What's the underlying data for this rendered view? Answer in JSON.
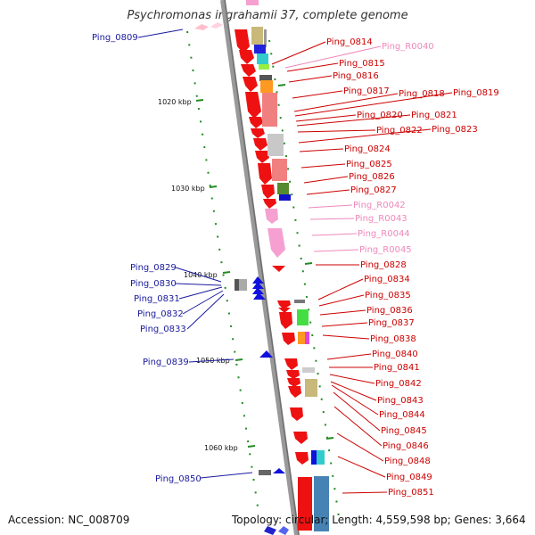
{
  "title": "Psychromonas ingrahamii 37, complete genome",
  "footer": {
    "accession": "Accession: NC_008709",
    "summary": "Topology: circular; Length: 4,559,598 bp; Genes: 3,664"
  },
  "colors": {
    "left_label": "#1a1aa0",
    "right_label": "#cc0000",
    "rna_label": "#ee88bb",
    "backbone": "#888888",
    "tick": "#228b22",
    "gene_red": "#ee1111",
    "gene_blue": "#1111dd",
    "gene_pink": "#f5a0d0"
  },
  "scale_labels": [
    "1020 kbp",
    "1030 kbp",
    "1040 kbp",
    "1050 kbp",
    "1060 kbp"
  ],
  "left_labels": [
    "Ping_0809",
    "Ping_0829",
    "Ping_0830",
    "Ping_0831",
    "Ping_0832",
    "Ping_0833",
    "Ping_0839",
    "Ping_0850"
  ],
  "right_labels": [
    {
      "text": "Ping_0814",
      "kind": "gene"
    },
    {
      "text": "Ping_R0040",
      "kind": "rna"
    },
    {
      "text": "Ping_0815",
      "kind": "gene"
    },
    {
      "text": "Ping_0816",
      "kind": "gene"
    },
    {
      "text": "Ping_0817",
      "kind": "gene"
    },
    {
      "text": "Ping_0818",
      "kind": "gene"
    },
    {
      "text": "Ping_0819",
      "kind": "gene"
    },
    {
      "text": "Ping_0820",
      "kind": "gene"
    },
    {
      "text": "Ping_0821",
      "kind": "gene"
    },
    {
      "text": "Ping_0822",
      "kind": "gene"
    },
    {
      "text": "Ping_0823",
      "kind": "gene"
    },
    {
      "text": "Ping_0824",
      "kind": "gene"
    },
    {
      "text": "Ping_0825",
      "kind": "gene"
    },
    {
      "text": "Ping_0826",
      "kind": "gene"
    },
    {
      "text": "Ping_0827",
      "kind": "gene"
    },
    {
      "text": "Ping_R0042",
      "kind": "rna"
    },
    {
      "text": "Ping_R0043",
      "kind": "rna"
    },
    {
      "text": "Ping_R0044",
      "kind": "rna"
    },
    {
      "text": "Ping_R0045",
      "kind": "rna"
    },
    {
      "text": "Ping_0828",
      "kind": "gene"
    },
    {
      "text": "Ping_0834",
      "kind": "gene"
    },
    {
      "text": "Ping_0835",
      "kind": "gene"
    },
    {
      "text": "Ping_0836",
      "kind": "gene"
    },
    {
      "text": "Ping_0837",
      "kind": "gene"
    },
    {
      "text": "Ping_0838",
      "kind": "gene"
    },
    {
      "text": "Ping_0840",
      "kind": "gene"
    },
    {
      "text": "Ping_0841",
      "kind": "gene"
    },
    {
      "text": "Ping_0842",
      "kind": "gene"
    },
    {
      "text": "Ping_0843",
      "kind": "gene"
    },
    {
      "text": "Ping_0844",
      "kind": "gene"
    },
    {
      "text": "Ping_0845",
      "kind": "gene"
    },
    {
      "text": "Ping_0846",
      "kind": "gene"
    },
    {
      "text": "Ping_0848",
      "kind": "gene"
    },
    {
      "text": "Ping_0849",
      "kind": "gene"
    },
    {
      "text": "Ping_0851",
      "kind": "gene"
    }
  ]
}
